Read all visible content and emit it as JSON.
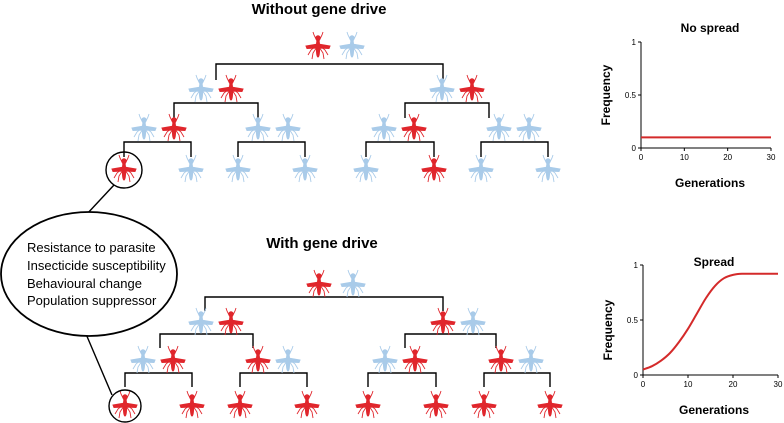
{
  "titles": {
    "top": "Without gene drive",
    "bottom": "With gene drive"
  },
  "traits": [
    "Resistance to parasite",
    "Insecticide susceptibility",
    "Behavioural change",
    "Population suppressor"
  ],
  "colors": {
    "modified": "#e0262c",
    "wild": "#a9cbe9",
    "line": "#000000",
    "curve": "#d42a2a"
  },
  "icons": {
    "mosquito": "mosquito-icon"
  },
  "trees": {
    "top": {
      "root": [
        "modified",
        "wild"
      ],
      "level1": [
        [
          "wild",
          "modified"
        ],
        [
          "wild",
          "modified"
        ]
      ],
      "level2": [
        [
          "wild",
          "modified"
        ],
        [
          "wild",
          "wild"
        ],
        [
          "wild",
          "modified"
        ],
        [
          "wild",
          "wild"
        ]
      ],
      "level3": [
        "modified",
        "wild",
        "wild",
        "wild",
        "wild",
        "modified",
        "wild",
        "wild"
      ]
    },
    "bottom": {
      "root": [
        "modified",
        "wild"
      ],
      "level1": [
        [
          "wild",
          "modified"
        ],
        [
          "modified",
          "wild"
        ]
      ],
      "level2": [
        [
          "wild",
          "modified"
        ],
        [
          "modified",
          "wild"
        ],
        [
          "wild",
          "modified"
        ],
        [
          "modified",
          "wild"
        ]
      ],
      "level3": [
        "modified",
        "modified",
        "modified",
        "modified",
        "modified",
        "modified",
        "modified",
        "modified"
      ]
    }
  },
  "chart_data": [
    {
      "type": "line",
      "title": "No spread",
      "xlabel": "Generations",
      "ylabel": "Frequency",
      "xlim": [
        0,
        30
      ],
      "ylim": [
        0,
        1
      ],
      "xticks": [
        "0",
        "10",
        "20",
        "30"
      ],
      "yticks": [
        "0",
        "0.5",
        "1"
      ],
      "x": [
        0,
        5,
        10,
        15,
        20,
        25,
        30
      ],
      "y": [
        0.1,
        0.1,
        0.1,
        0.1,
        0.1,
        0.1,
        0.1
      ]
    },
    {
      "type": "line",
      "title": "Spread",
      "xlabel": "Generations",
      "ylabel": "Frequency",
      "xlim": [
        0,
        30
      ],
      "ylim": [
        0,
        1
      ],
      "xticks": [
        "0",
        "10",
        "20",
        "30"
      ],
      "yticks": [
        "0",
        "0.5",
        "1"
      ],
      "x": [
        0,
        2,
        4,
        6,
        8,
        10,
        12,
        14,
        16,
        18,
        20,
        22,
        25,
        30
      ],
      "y": [
        0.05,
        0.08,
        0.13,
        0.2,
        0.3,
        0.42,
        0.56,
        0.7,
        0.81,
        0.88,
        0.91,
        0.92,
        0.92,
        0.92
      ]
    }
  ]
}
